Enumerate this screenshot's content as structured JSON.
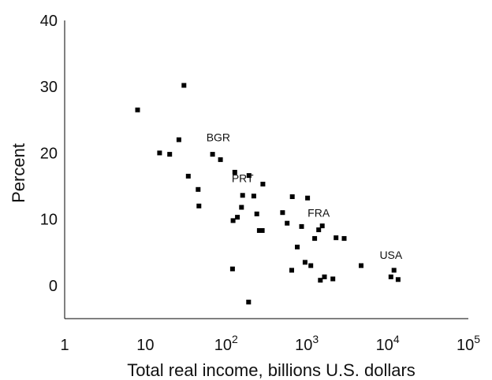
{
  "chart_data": {
    "type": "scatter",
    "xlabel": "Total real income, billions U.S. dollars",
    "ylabel": "Percent",
    "x_scale": "log",
    "xlim": [
      1,
      100000
    ],
    "ylim": [
      -5,
      40
    ],
    "x_ticks": [
      {
        "value": 1,
        "base": "1",
        "exp": ""
      },
      {
        "value": 10,
        "base": "10",
        "exp": ""
      },
      {
        "value": 100,
        "base": "10",
        "exp": "2"
      },
      {
        "value": 1000,
        "base": "10",
        "exp": "3"
      },
      {
        "value": 10000,
        "base": "10",
        "exp": "4"
      },
      {
        "value": 100000,
        "base": "10",
        "exp": "5"
      }
    ],
    "y_ticks": [
      0,
      10,
      20,
      30,
      40
    ],
    "grid": false,
    "marker_color": "#000000",
    "annotations": [
      {
        "text": "BGR",
        "x": 80,
        "y": 21.8
      },
      {
        "text": "PRT",
        "x": 160,
        "y": 15.6
      },
      {
        "text": "FRA",
        "x": 1400,
        "y": 10.4
      },
      {
        "text": "USA",
        "x": 11000,
        "y": 4.0
      }
    ],
    "points": [
      {
        "x": 8,
        "y": 26.5
      },
      {
        "x": 15,
        "y": 20.0
      },
      {
        "x": 20,
        "y": 19.8
      },
      {
        "x": 26,
        "y": 22.0
      },
      {
        "x": 30,
        "y": 30.2
      },
      {
        "x": 34,
        "y": 16.5
      },
      {
        "x": 45,
        "y": 14.5
      },
      {
        "x": 46,
        "y": 12.0
      },
      {
        "x": 68,
        "y": 19.8
      },
      {
        "x": 85,
        "y": 19.0
      },
      {
        "x": 120,
        "y": 2.5
      },
      {
        "x": 122,
        "y": 9.8
      },
      {
        "x": 128,
        "y": 17.1
      },
      {
        "x": 138,
        "y": 10.3
      },
      {
        "x": 155,
        "y": 11.8
      },
      {
        "x": 160,
        "y": 13.6
      },
      {
        "x": 190,
        "y": -2.5
      },
      {
        "x": 192,
        "y": 16.6
      },
      {
        "x": 220,
        "y": 13.5
      },
      {
        "x": 240,
        "y": 10.8
      },
      {
        "x": 258,
        "y": 8.3
      },
      {
        "x": 280,
        "y": 8.3
      },
      {
        "x": 285,
        "y": 15.3
      },
      {
        "x": 500,
        "y": 11.0
      },
      {
        "x": 570,
        "y": 9.4
      },
      {
        "x": 650,
        "y": 2.3
      },
      {
        "x": 660,
        "y": 13.4
      },
      {
        "x": 760,
        "y": 5.8
      },
      {
        "x": 860,
        "y": 8.9
      },
      {
        "x": 950,
        "y": 3.5
      },
      {
        "x": 1020,
        "y": 13.2
      },
      {
        "x": 1120,
        "y": 3.0
      },
      {
        "x": 1250,
        "y": 7.1
      },
      {
        "x": 1400,
        "y": 8.4
      },
      {
        "x": 1470,
        "y": 0.8
      },
      {
        "x": 1550,
        "y": 9.0
      },
      {
        "x": 1650,
        "y": 1.3
      },
      {
        "x": 2100,
        "y": 1.0
      },
      {
        "x": 2300,
        "y": 7.2
      },
      {
        "x": 2900,
        "y": 7.1
      },
      {
        "x": 4700,
        "y": 3.0
      },
      {
        "x": 11000,
        "y": 1.3
      },
      {
        "x": 12000,
        "y": 2.3
      },
      {
        "x": 13500,
        "y": 0.9
      }
    ]
  }
}
